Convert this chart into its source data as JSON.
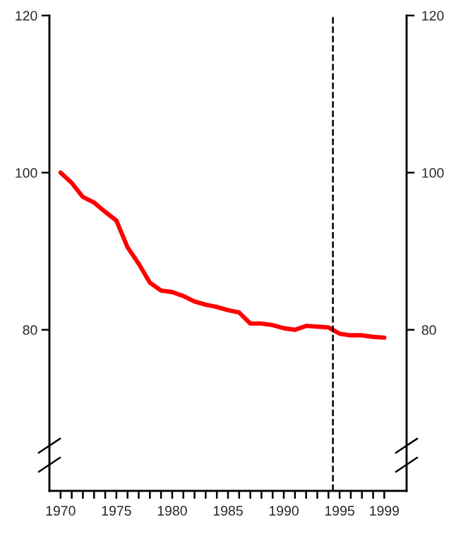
{
  "chart_data": {
    "type": "line",
    "x": [
      1970,
      1971,
      1972,
      1973,
      1974,
      1975,
      1976,
      1977,
      1978,
      1979,
      1980,
      1981,
      1982,
      1983,
      1984,
      1985,
      1986,
      1987,
      1988,
      1989,
      1990,
      1991,
      1992,
      1993,
      1994,
      1995,
      1996,
      1997,
      1998,
      1999
    ],
    "series": [
      {
        "color": "#ff0000",
        "values": [
          100,
          98.7,
          96.9,
          96.2,
          95,
          93.9,
          90.5,
          88.4,
          86,
          85,
          84.8,
          84.3,
          83.6,
          83.2,
          82.9,
          82.5,
          82.2,
          80.8,
          80.8,
          80.6,
          80.2,
          80.0,
          80.5,
          80.4,
          80.3,
          79.5,
          79.3,
          79.3,
          79.1,
          79.0
        ]
      }
    ],
    "xlim": [
      1969,
      2001
    ],
    "ylim": [
      59.5,
      120
    ],
    "xticks": [
      1970,
      {
        "value": 1971,
        "label": null
      },
      {
        "value": 1972,
        "label": null
      },
      {
        "value": 1973,
        "label": null
      },
      {
        "value": 1974,
        "label": null
      },
      1975,
      {
        "value": 1976,
        "label": null
      },
      {
        "value": 1977,
        "label": null
      },
      {
        "value": 1978,
        "label": null
      },
      {
        "value": 1979,
        "label": null
      },
      1980,
      {
        "value": 1981,
        "label": null
      },
      {
        "value": 1982,
        "label": null
      },
      {
        "value": 1983,
        "label": null
      },
      {
        "value": 1984,
        "label": null
      },
      1985,
      {
        "value": 1986,
        "label": null
      },
      {
        "value": 1987,
        "label": null
      },
      {
        "value": 1988,
        "label": null
      },
      {
        "value": 1989,
        "label": null
      },
      1990,
      {
        "value": 1991,
        "label": null
      },
      {
        "value": 1992,
        "label": null
      },
      {
        "value": 1993,
        "label": null
      },
      {
        "value": 1994,
        "label": null
      },
      1995,
      {
        "value": 1996,
        "label": null
      },
      {
        "value": 1997,
        "label": null
      },
      {
        "value": 1998,
        "label": null
      },
      1999
    ],
    "yticks": [
      80,
      100,
      120
    ],
    "y2lim": [
      59.5,
      120
    ],
    "y2ticks": [
      80,
      100,
      120
    ],
    "ref_lines": [
      {
        "axis": "x",
        "value": 1994.4,
        "color": "#000000",
        "line_style": "dashed"
      }
    ],
    "grid": false,
    "marker": "none",
    "line_style": "solid"
  }
}
